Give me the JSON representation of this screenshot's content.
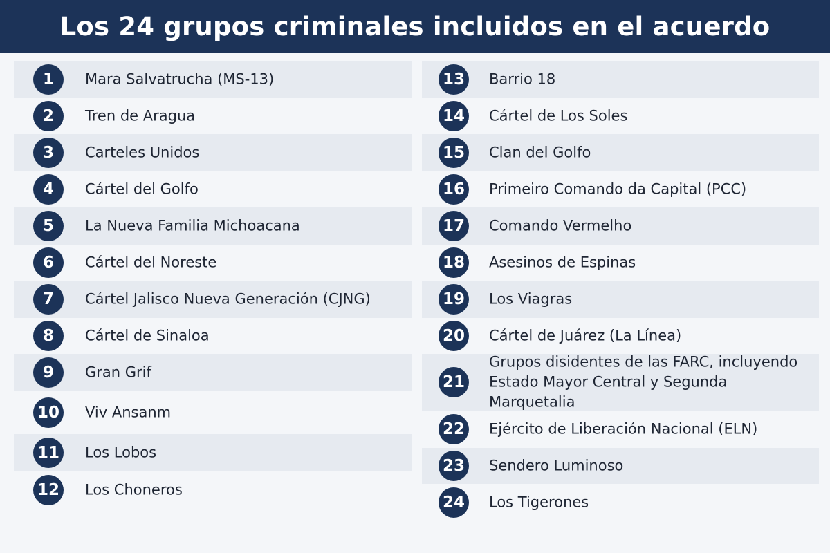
{
  "title": "Los 24 grupos criminales incluidos en el acuerdo",
  "colors": {
    "header_bg": "#1c3358",
    "badge_bg": "#1c3358",
    "row_shade": "#e6eaf0"
  },
  "left_groups": [
    {
      "number": "1",
      "name": "Mara Salvatrucha (MS-13)"
    },
    {
      "number": "2",
      "name": "Tren de Aragua"
    },
    {
      "number": "3",
      "name": "Carteles Unidos"
    },
    {
      "number": "4",
      "name": "Cártel del Golfo"
    },
    {
      "number": "5",
      "name": "La Nueva Familia Michoacana"
    },
    {
      "number": "6",
      "name": "Cártel del Noreste"
    },
    {
      "number": "7",
      "name": "Cártel Jalisco Nueva Generación (CJNG)"
    },
    {
      "number": "8",
      "name": "Cártel de Sinaloa"
    },
    {
      "number": "9",
      "name": "Gran Grif"
    },
    {
      "number": "10",
      "name": "Viv Ansanm"
    },
    {
      "number": "11",
      "name": "Los Lobos"
    },
    {
      "number": "12",
      "name": "Los Choneros"
    }
  ],
  "right_groups": [
    {
      "number": "13",
      "name": "Barrio 18"
    },
    {
      "number": "14",
      "name": "Cártel de Los Soles"
    },
    {
      "number": "15",
      "name": "Clan del Golfo"
    },
    {
      "number": "16",
      "name": "Primeiro Comando da Capital (PCC)"
    },
    {
      "number": "17",
      "name": "Comando Vermelho"
    },
    {
      "number": "18",
      "name": "Asesinos de Espinas"
    },
    {
      "number": "19",
      "name": "Los Viagras"
    },
    {
      "number": "20",
      "name": "Cártel de Juárez (La Línea)"
    },
    {
      "number": "21",
      "name": "Grupos disidentes de las FARC, incluyendo Estado Mayor Central y Segunda Marquetalia"
    },
    {
      "number": "22",
      "name": "Ejército de Liberación Nacional (ELN)"
    },
    {
      "number": "23",
      "name": "Sendero Luminoso"
    },
    {
      "number": "24",
      "name": "Los Tigerones"
    }
  ]
}
